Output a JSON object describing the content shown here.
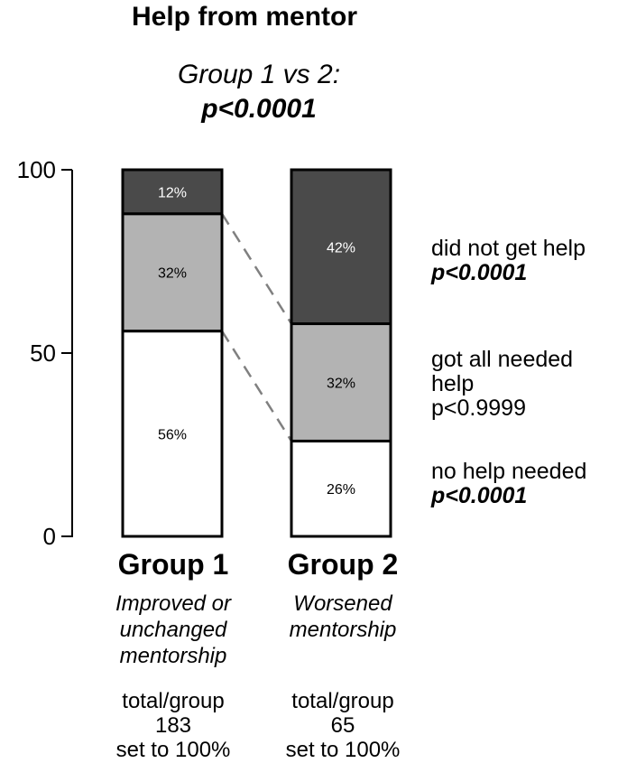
{
  "colors": {
    "did_not_get_help": "#4a4a4a",
    "got_all_needed_help": "#b3b3b3",
    "no_help_needed": "#ffffff",
    "outline": "#000000",
    "connector": "#808080"
  },
  "chart_data": {
    "type": "bar",
    "stacked": true,
    "title": "Help from mentor",
    "subtitle_line1": "Group 1 vs 2:",
    "subtitle_line2": "p<0.0001",
    "ylim": [
      0,
      100
    ],
    "yticks": [
      0,
      50,
      100
    ],
    "ytick_labels": [
      "0",
      "50",
      "100"
    ],
    "categories": [
      "Group 1",
      "Group 2"
    ],
    "category_descriptions": [
      [
        "Improved or",
        "unchanged",
        "mentorship"
      ],
      [
        "Worsened",
        "mentorship"
      ]
    ],
    "category_totals": [
      [
        "total/group",
        "183",
        "set to 100%"
      ],
      [
        "total/group",
        "65",
        "set to 100%"
      ]
    ],
    "series": [
      {
        "name": "no help needed",
        "values": [
          56,
          26
        ],
        "labels": [
          "56%",
          "26%"
        ],
        "p_label": "p<0.0001",
        "p_bold": true
      },
      {
        "name": "got all needed help",
        "values": [
          32,
          32
        ],
        "labels": [
          "32%",
          "32%"
        ],
        "p_label": "p<0.9999",
        "p_bold": false
      },
      {
        "name": "did not get help",
        "values": [
          12,
          42
        ],
        "labels": [
          "12%",
          "42%"
        ],
        "p_label": "p<0.0001",
        "p_bold": true
      }
    ],
    "legend_lines": {
      "did_not_get_help": [
        "did not get help"
      ],
      "got_all_needed_help": [
        "got all needed",
        "help"
      ],
      "no_help_needed": [
        "no help needed"
      ]
    },
    "grid": false,
    "legend_position": "right"
  }
}
